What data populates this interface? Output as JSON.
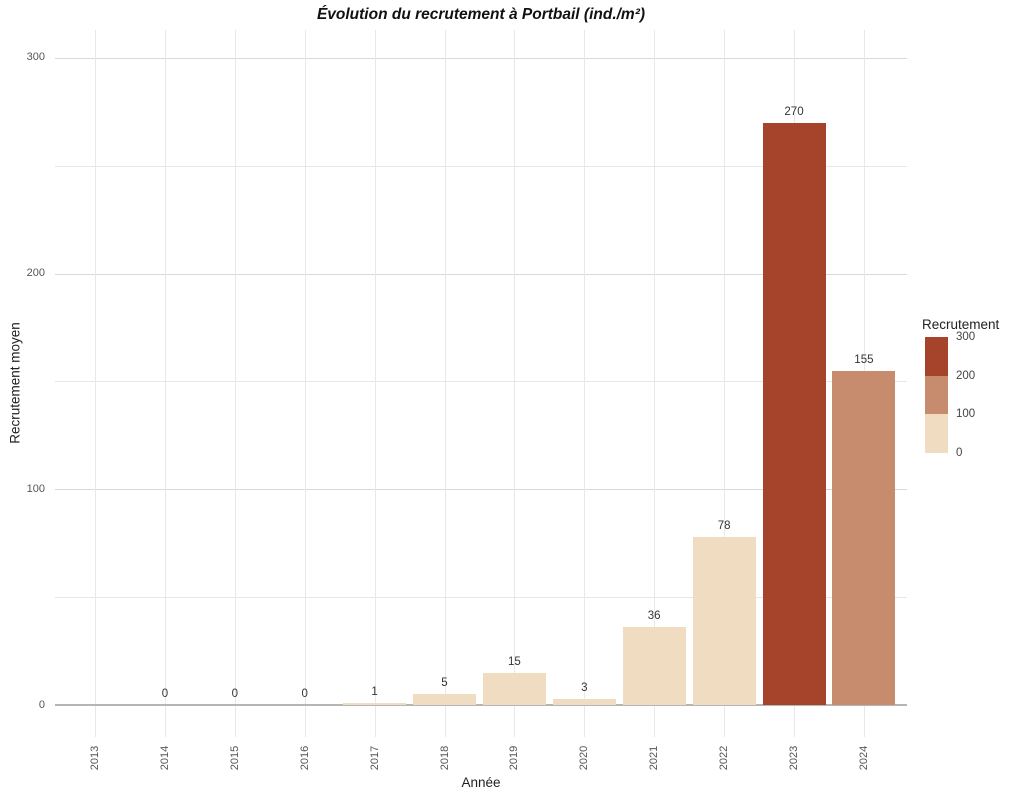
{
  "chart_data": {
    "type": "bar",
    "title": "Évolution du recrutement à Portbail (ind./m²)",
    "xlabel": "Année",
    "ylabel": "Recrutement moyen",
    "categories": [
      "2013",
      "2014",
      "2015",
      "2016",
      "2017",
      "2018",
      "2019",
      "2020",
      "2021",
      "2022",
      "2023",
      "2024"
    ],
    "values": [
      null,
      0,
      0,
      0,
      1,
      5,
      15,
      3,
      36,
      78,
      270,
      155
    ],
    "bar_value_labels": [
      "",
      "0",
      "0",
      "0",
      "1",
      "5",
      "15",
      "3",
      "36",
      "78",
      "270",
      "155"
    ],
    "ylim": [
      0,
      300
    ],
    "yticks": [
      0,
      100,
      200,
      300
    ],
    "ytick_labels": [
      "0",
      "100",
      "200",
      "300"
    ],
    "minor_gridlines": [
      50,
      150,
      250
    ],
    "grid": true,
    "fill_bins": {
      "description": "bar fill color binned by value",
      "breaks": [
        0,
        100,
        200,
        300
      ],
      "colors": [
        "#f0dcc0",
        "#c78c6e",
        "#a6432b"
      ]
    },
    "legend": {
      "title": "Recrutement",
      "position": "right",
      "style": "binned-colorbar",
      "tick_labels": [
        "300",
        "200",
        "100",
        "0"
      ],
      "segment_colors_top_to_bottom": [
        "#a6432b",
        "#c78c6e",
        "#f0dcc0"
      ]
    }
  }
}
